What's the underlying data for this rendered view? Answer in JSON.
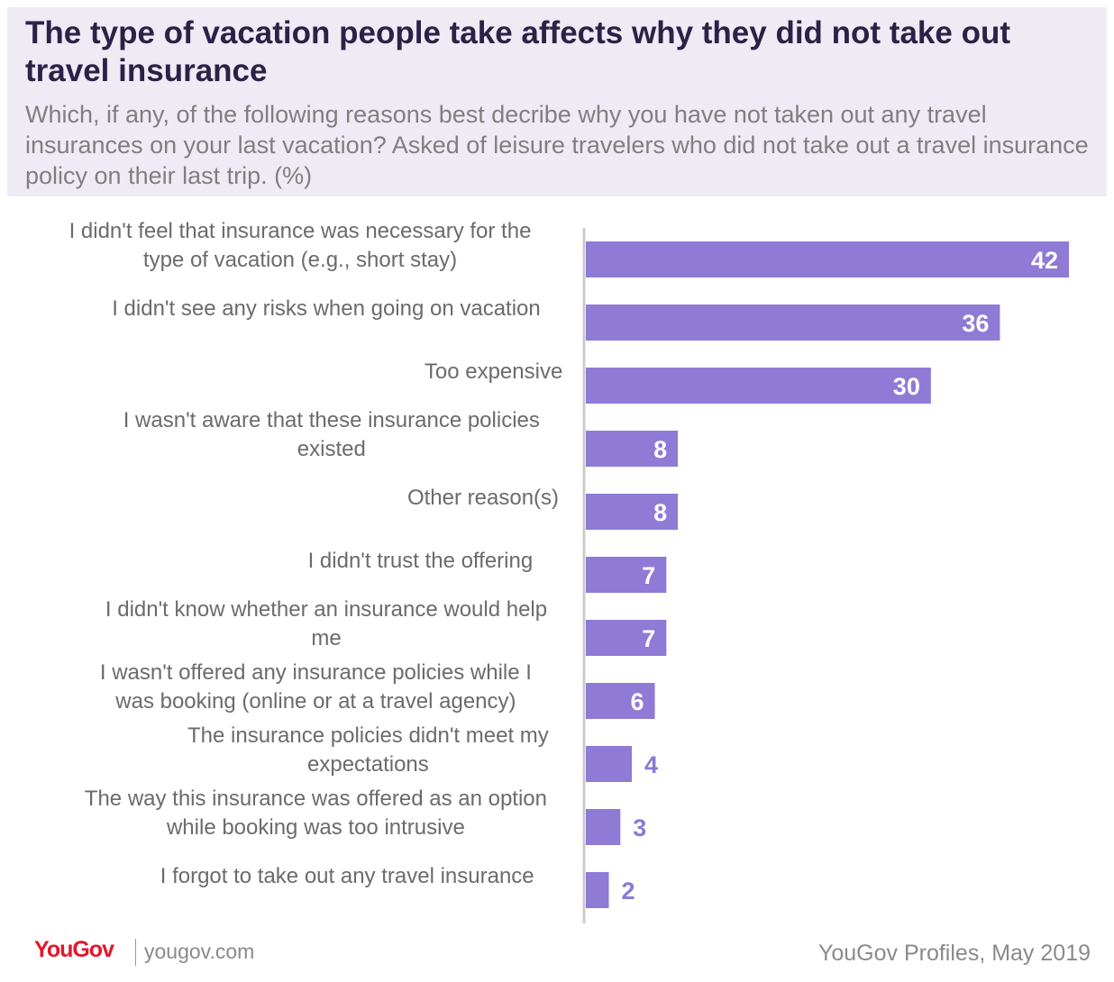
{
  "header": {
    "title": "The type of vacation people take affects why they did not take out travel insurance",
    "subtitle": "Which, if any, of the following reasons best decribe why you have not taken out any travel insurances on your last vacation? Asked of leisure travelers who did not take out a travel insurance policy on their last trip. (%)"
  },
  "chart_data": {
    "type": "bar",
    "orientation": "horizontal",
    "bar_color": "#8f7ad6",
    "categories": [
      [
        "I didn't feel that insurance was necessary for the",
        "type of vacation (e.g., short stay)"
      ],
      [
        "I didn't see any risks when going on vacation"
      ],
      [
        "Too expensive"
      ],
      [
        "I wasn't aware that these insurance policies",
        "existed"
      ],
      [
        "Other reason(s)"
      ],
      [
        "I didn't trust the offering"
      ],
      [
        "I didn't know whether an insurance would help",
        "me"
      ],
      [
        "I wasn't offered any insurance policies while I",
        "was booking (online or at a travel agency)"
      ],
      [
        "The insurance policies didn't meet my",
        "expectations"
      ],
      [
        "The way this insurance was offered as an option",
        "while booking was too intrusive"
      ],
      [
        "I forgot to take out any travel insurance"
      ]
    ],
    "values": [
      42,
      36,
      30,
      8,
      8,
      7,
      7,
      6,
      4,
      3,
      2
    ],
    "grid": false,
    "legend": "none"
  },
  "footer": {
    "logo": "YouGov",
    "site": "yougov.com",
    "source": "YouGov Profiles, May 2019"
  }
}
